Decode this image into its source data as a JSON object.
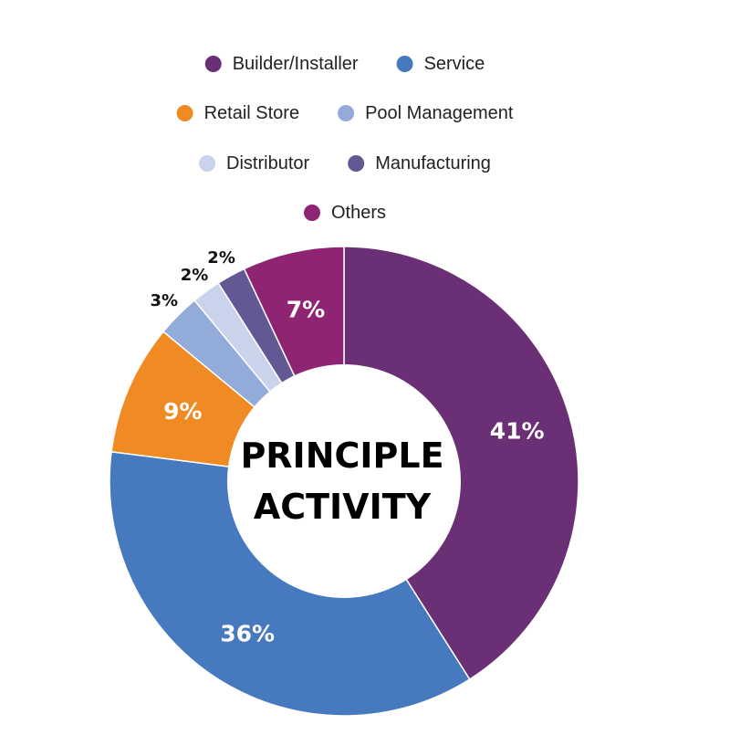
{
  "chart_data": {
    "type": "pie",
    "variant": "donut",
    "center_title_lines": [
      "PRINCIPLE",
      "ACTIVITY"
    ],
    "legend_position": "top",
    "slices": [
      {
        "name": "Builder/Installer",
        "value": 41,
        "label": "41%",
        "color": "#6b2f75"
      },
      {
        "name": "Service",
        "value": 36,
        "label": "36%",
        "color": "#4679bd"
      },
      {
        "name": "Retail Store",
        "value": 9,
        "label": "9%",
        "color": "#ef8b22"
      },
      {
        "name": "Pool Management",
        "value": 3,
        "label": "3%",
        "color": "#93abd8"
      },
      {
        "name": "Distributor",
        "value": 2,
        "label": "2%",
        "color": "#c9d3ec"
      },
      {
        "name": "Manufacturing",
        "value": 2,
        "label": "2%",
        "color": "#625893"
      },
      {
        "name": "Others",
        "value": 7,
        "label": "7%",
        "color": "#8f2472"
      }
    ]
  }
}
